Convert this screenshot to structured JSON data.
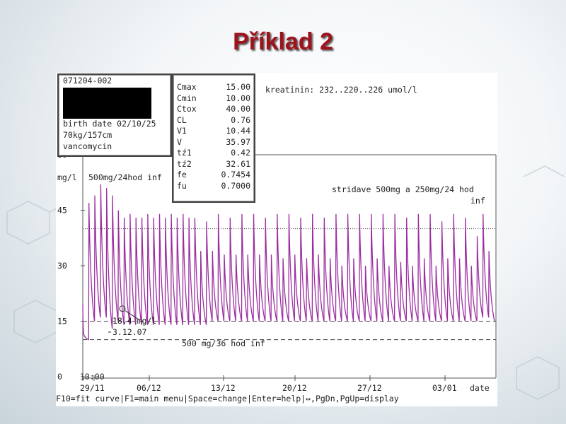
{
  "slide": {
    "title": "Příklad 2"
  },
  "patient": {
    "id": "071204-002",
    "birth_date": "birth date 02/10/25",
    "body": "70kg/157cm",
    "drug": "vancomycin"
  },
  "params": [
    {
      "k": "Cmax",
      "v": "15.00"
    },
    {
      "k": "Cmin",
      "v": "10.00"
    },
    {
      "k": "Ctox",
      "v": "40.00"
    },
    {
      "k": "CL",
      "v": "0.76"
    },
    {
      "k": "V1",
      "v": "10.44"
    },
    {
      "k": "V",
      "v": "35.97"
    },
    {
      "k": "tź1",
      "v": "0.42"
    },
    {
      "k": "tź2",
      "v": "32.61"
    },
    {
      "k": "fe",
      "v": "0.7454"
    },
    {
      "k": "fu",
      "v": "0.7000"
    }
  ],
  "kreatinin": "kreatinin: 232..220..226 umol/l",
  "footer": "F10=fit curve|F1=main menu|Space=change|Enter=help|↔,PgDn,PgUp=display",
  "colors": {
    "title": "#a0121c",
    "curve": "#9b2fa0",
    "axis": "#555555"
  },
  "chart_data": {
    "type": "line",
    "ylabel": "mg/l",
    "xlabel": "date",
    "ylim": [
      0,
      60
    ],
    "yticks": [
      0,
      15,
      30,
      45
    ],
    "ytick_top": "60",
    "xtick_labels": [
      "10:00\n29/11",
      "06/12",
      "13/12",
      "20/12",
      "27/12",
      "03/01"
    ],
    "reference_lines": [
      {
        "y": 40,
        "style": "dotted"
      },
      {
        "y": 15,
        "style": "dashed"
      },
      {
        "y": 10,
        "style": "dashed"
      }
    ],
    "annotations": [
      "500mg/24hod inf",
      "stridave 500mg a 250mg/24 hod",
      "inf",
      "18.4 mg/l",
      "3.12.07",
      "500 mg/36 hod inf"
    ],
    "measured_point": {
      "date": "03/12/07",
      "y": 18.4
    },
    "series": [
      {
        "values": [
          [
            0,
            19.5
          ],
          [
            0.15,
            11.5
          ],
          [
            1.0,
            10
          ],
          [
            1.05,
            47
          ],
          [
            2.0,
            15
          ],
          [
            2.05,
            49
          ],
          [
            3.0,
            16
          ],
          [
            3.05,
            52
          ],
          [
            4.0,
            16
          ],
          [
            4.05,
            51
          ],
          [
            5.0,
            13
          ],
          [
            5.05,
            49
          ],
          [
            6.0,
            15
          ],
          [
            6.05,
            45
          ],
          [
            7.0,
            14
          ],
          [
            7.05,
            43
          ],
          [
            8.0,
            14
          ],
          [
            8.05,
            44
          ],
          [
            9.0,
            14
          ],
          [
            9.05,
            43
          ],
          [
            10.0,
            14
          ],
          [
            10.05,
            43
          ],
          [
            11.0,
            14
          ],
          [
            11.05,
            44
          ],
          [
            12.0,
            14
          ],
          [
            12.05,
            43
          ],
          [
            13.0,
            14
          ],
          [
            13.05,
            44
          ],
          [
            14.0,
            14
          ],
          [
            14.05,
            43
          ],
          [
            15.0,
            14
          ],
          [
            15.05,
            44
          ],
          [
            16.0,
            14
          ],
          [
            16.05,
            43
          ],
          [
            17.0,
            14
          ],
          [
            17.05,
            44
          ],
          [
            18.0,
            14
          ],
          [
            18.05,
            43
          ],
          [
            19.0,
            14
          ],
          [
            19.05,
            43
          ],
          [
            20.0,
            14
          ],
          [
            20.05,
            34
          ],
          [
            21.0,
            14
          ],
          [
            21.05,
            42
          ],
          [
            22.0,
            15
          ],
          [
            22.05,
            34
          ],
          [
            23.0,
            15
          ],
          [
            23.05,
            44
          ],
          [
            24.0,
            15
          ],
          [
            24.05,
            33
          ],
          [
            25.0,
            15
          ],
          [
            25.05,
            43
          ],
          [
            26.0,
            15
          ],
          [
            26.05,
            33
          ],
          [
            27.0,
            15
          ],
          [
            27.05,
            44
          ],
          [
            28.0,
            15
          ],
          [
            28.05,
            33
          ],
          [
            29.0,
            15
          ],
          [
            29.05,
            44
          ],
          [
            30.0,
            15
          ],
          [
            30.05,
            33
          ],
          [
            31.0,
            15
          ],
          [
            31.05,
            43
          ],
          [
            32.0,
            15
          ],
          [
            32.05,
            33
          ],
          [
            33.0,
            15
          ],
          [
            33.05,
            44
          ],
          [
            34.0,
            15
          ],
          [
            34.05,
            32
          ],
          [
            35.0,
            15
          ],
          [
            35.05,
            44
          ],
          [
            36.0,
            15
          ],
          [
            36.05,
            33
          ],
          [
            37.0,
            15
          ],
          [
            37.05,
            43
          ],
          [
            38.0,
            15
          ],
          [
            38.05,
            32
          ],
          [
            39.0,
            15
          ],
          [
            39.05,
            44
          ],
          [
            40.0,
            15
          ],
          [
            40.05,
            33
          ],
          [
            41.0,
            15
          ],
          [
            41.05,
            43
          ],
          [
            42.0,
            15
          ],
          [
            42.05,
            32
          ],
          [
            43.0,
            15
          ],
          [
            43.05,
            44
          ],
          [
            44.0,
            15
          ],
          [
            44.05,
            30
          ],
          [
            45.0,
            15
          ],
          [
            45.05,
            44
          ],
          [
            46.0,
            15
          ],
          [
            46.05,
            32
          ],
          [
            47.0,
            15
          ],
          [
            47.05,
            44
          ],
          [
            48.0,
            15
          ],
          [
            48.05,
            30
          ],
          [
            49.0,
            15
          ],
          [
            49.05,
            44
          ],
          [
            50.0,
            15
          ],
          [
            50.05,
            32
          ],
          [
            51.0,
            15
          ],
          [
            51.05,
            44
          ],
          [
            52.0,
            15
          ],
          [
            52.05,
            30
          ],
          [
            53.0,
            15
          ],
          [
            53.05,
            44
          ],
          [
            54.0,
            15
          ],
          [
            54.05,
            31
          ],
          [
            55.0,
            15
          ],
          [
            55.05,
            43
          ],
          [
            56.0,
            15
          ],
          [
            56.05,
            30
          ],
          [
            57.0,
            15
          ],
          [
            57.05,
            44
          ],
          [
            58.0,
            15
          ],
          [
            58.05,
            32
          ],
          [
            59.0,
            15
          ],
          [
            59.05,
            44
          ],
          [
            60.0,
            15
          ],
          [
            60.05,
            30
          ],
          [
            61.0,
            15
          ],
          [
            61.05,
            42
          ],
          [
            62.0,
            15
          ],
          [
            62.05,
            32
          ],
          [
            63.0,
            15
          ],
          [
            63.05,
            44
          ],
          [
            64.0,
            15
          ],
          [
            64.05,
            32
          ],
          [
            65.0,
            15
          ],
          [
            65.05,
            43
          ],
          [
            66.0,
            15
          ],
          [
            66.05,
            30
          ],
          [
            67.0,
            15
          ],
          [
            67.05,
            38
          ],
          [
            68.0,
            16
          ],
          [
            68.05,
            44
          ],
          [
            69.0,
            16
          ],
          [
            69.05,
            34
          ],
          [
            70.0,
            15
          ]
        ]
      }
    ]
  }
}
